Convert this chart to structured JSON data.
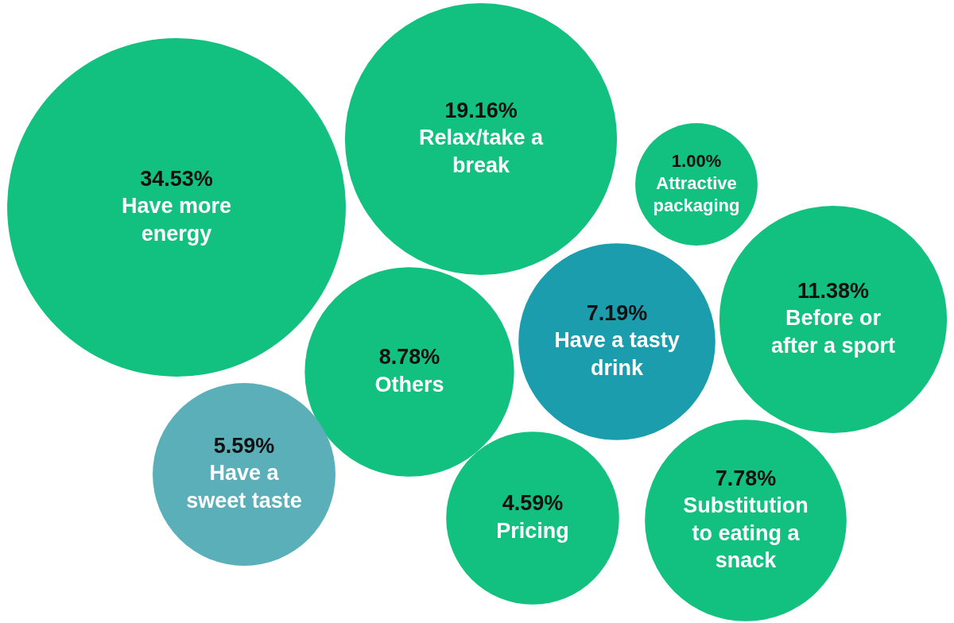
{
  "chart_data": {
    "type": "other",
    "categories": [
      "Have more energy",
      "Relax/take a break",
      "Attractive packaging",
      "Before or after a sport",
      "Have a tasty drink",
      "Others",
      "Have a sweet taste",
      "Pricing",
      "Substitution to eating a snack"
    ],
    "values": [
      34.53,
      19.16,
      1.0,
      11.38,
      7.19,
      8.78,
      5.59,
      4.59,
      7.78
    ],
    "value_labels": [
      "34.53%",
      "19.16%",
      "1.00%",
      "11.38%",
      "7.19%",
      "8.78%",
      "5.59%",
      "4.59%",
      "7.78%"
    ],
    "colors": [
      "#12c07f",
      "#12c07f",
      "#12c07f",
      "#12c07f",
      "#1b9dad",
      "#12c07f",
      "#5aafb9",
      "#12c07f",
      "#12c07f"
    ]
  }
}
